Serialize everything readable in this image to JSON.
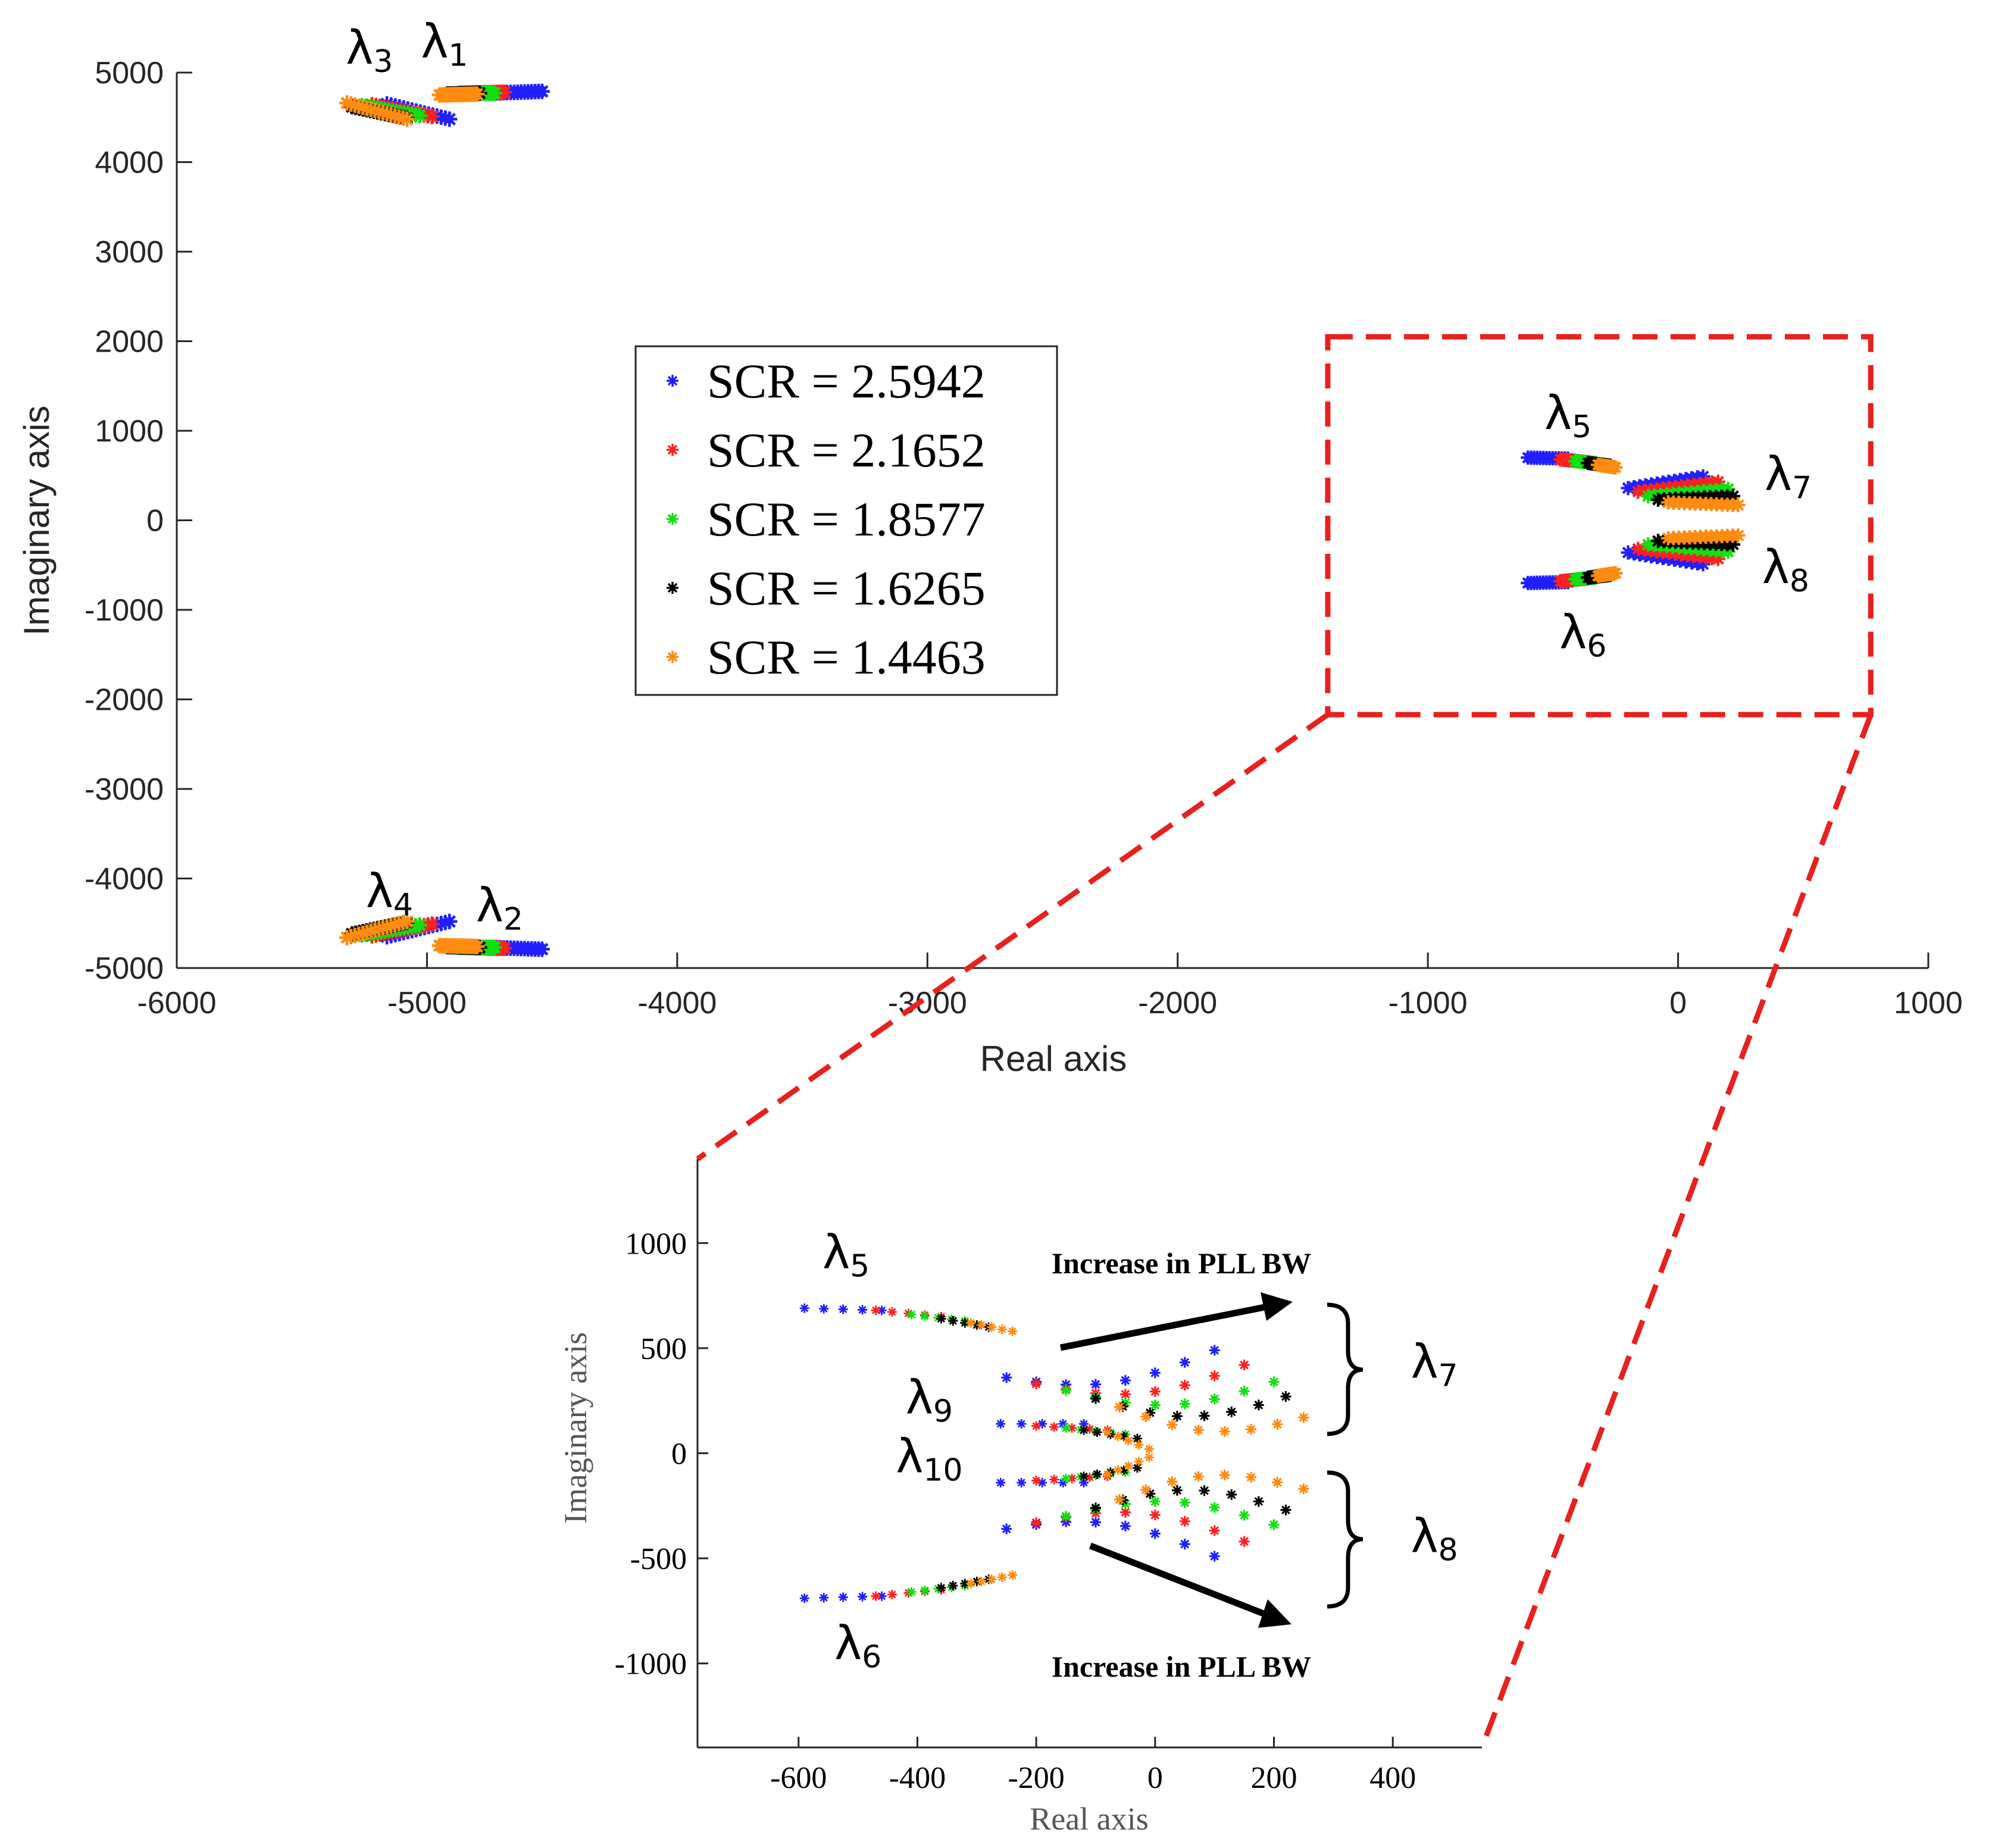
{
  "colors": {
    "blue": "#1f1fff",
    "red": "#ff2020",
    "green": "#10e010",
    "black": "#000000",
    "orange": "#ff8c10",
    "dash": "#e8201e",
    "axis": "#262626"
  },
  "chart_data": [
    {
      "type": "scatter",
      "name": "main",
      "xlabel": "Real axis",
      "ylabel": "Imaginary axis",
      "xlim": [
        -6000,
        1000
      ],
      "ylim": [
        -5000,
        5000
      ],
      "xticks": [
        -6000,
        -5000,
        -4000,
        -3000,
        -2000,
        -1000,
        0,
        1000
      ],
      "yticks": [
        -5000,
        -4000,
        -3000,
        -2000,
        -1000,
        0,
        1000,
        2000,
        3000,
        4000,
        5000
      ],
      "legend": {
        "position": "center-left",
        "entries": [
          "SCR = 2.5942",
          "SCR = 2.1652",
          "SCR = 1.8577",
          "SCR = 1.6265",
          "SCR = 1.4463"
        ]
      },
      "eigen_labels": [
        {
          "text": "λ",
          "sub": "1",
          "x": -4930,
          "y": 5170
        },
        {
          "text": "λ",
          "sub": "2",
          "x": -4710,
          "y": -4480
        },
        {
          "text": "λ",
          "sub": "3",
          "x": -5230,
          "y": 5100
        },
        {
          "text": "λ",
          "sub": "4",
          "x": -5150,
          "y": -4320
        },
        {
          "text": "λ",
          "sub": "5",
          "x": -440,
          "y": 1020
        },
        {
          "text": "λ",
          "sub": "6",
          "x": -380,
          "y": -1430
        },
        {
          "text": "λ",
          "sub": "7",
          "x": 440,
          "y": 340
        },
        {
          "text": "λ",
          "sub": "8",
          "x": 430,
          "y": -700
        }
      ],
      "zoom_box": {
        "x_range": [
          -1400,
          770
        ],
        "y_range": [
          -2170,
          2050
        ]
      },
      "series": [
        {
          "name": "SCR = 2.5942",
          "color_key": "blue",
          "branches": [
            {
              "label": "λ1",
              "from": [
                -4750,
                4770
              ],
              "to": [
                -4540,
                4790
              ]
            },
            {
              "label": "λ2",
              "from": [
                -4750,
                -4770
              ],
              "to": [
                -4540,
                -4790
              ]
            },
            {
              "label": "λ3",
              "from": [
                -5160,
                4650
              ],
              "to": [
                -4910,
                4480
              ]
            },
            {
              "label": "λ4",
              "from": [
                -5160,
                -4650
              ],
              "to": [
                -4910,
                -4480
              ]
            },
            {
              "label": "λ5",
              "from": [
                -600,
                700
              ],
              "to": [
                -440,
                690
              ]
            },
            {
              "label": "λ6",
              "from": [
                -600,
                -700
              ],
              "to": [
                -440,
                -690
              ]
            },
            {
              "label": "λ7",
              "from": [
                -200,
                360
              ],
              "to": [
                100,
                490
              ]
            },
            {
              "label": "λ8",
              "from": [
                -200,
                -360
              ],
              "to": [
                100,
                -490
              ]
            }
          ]
        },
        {
          "name": "SCR = 2.1652",
          "color_key": "red",
          "branches": [
            {
              "label": "λ1",
              "from": [
                -4850,
                4770
              ],
              "to": [
                -4690,
                4780
              ]
            },
            {
              "label": "λ2",
              "from": [
                -4850,
                -4770
              ],
              "to": [
                -4690,
                -4780
              ]
            },
            {
              "label": "λ3",
              "from": [
                -5220,
                4640
              ],
              "to": [
                -4980,
                4510
              ]
            },
            {
              "label": "λ4",
              "from": [
                -5220,
                -4640
              ],
              "to": [
                -4980,
                -4510
              ]
            },
            {
              "label": "λ5",
              "from": [
                -470,
                680
              ],
              "to": [
                -360,
                650
              ]
            },
            {
              "label": "λ6",
              "from": [
                -470,
                -680
              ],
              "to": [
                -360,
                -650
              ]
            },
            {
              "label": "λ7",
              "from": [
                -160,
                320
              ],
              "to": [
                160,
                430
              ]
            },
            {
              "label": "λ8",
              "from": [
                -160,
                -320
              ],
              "to": [
                160,
                -430
              ]
            }
          ]
        },
        {
          "name": "SCR = 1.8577",
          "color_key": "green",
          "branches": [
            {
              "label": "λ1",
              "from": [
                -4870,
                4770
              ],
              "to": [
                -4730,
                4770
              ]
            },
            {
              "label": "λ2",
              "from": [
                -4870,
                -4770
              ],
              "to": [
                -4730,
                -4770
              ]
            },
            {
              "label": "λ3",
              "from": [
                -5260,
                4630
              ],
              "to": [
                -5030,
                4520
              ]
            },
            {
              "label": "λ4",
              "from": [
                -5260,
                -4630
              ],
              "to": [
                -5030,
                -4520
              ]
            },
            {
              "label": "λ5",
              "from": [
                -410,
                660
              ],
              "to": [
                -330,
                640
              ]
            },
            {
              "label": "λ6",
              "from": [
                -410,
                -660
              ],
              "to": [
                -330,
                -640
              ]
            },
            {
              "label": "λ7",
              "from": [
                -120,
                270
              ],
              "to": [
                200,
                350
              ]
            },
            {
              "label": "λ8",
              "from": [
                -120,
                -270
              ],
              "to": [
                200,
                -350
              ]
            }
          ]
        },
        {
          "name": "SCR = 1.6265",
          "color_key": "black",
          "branches": [
            {
              "label": "λ1",
              "from": [
                -4920,
                4760
              ],
              "to": [
                -4790,
                4770
              ]
            },
            {
              "label": "λ2",
              "from": [
                -4920,
                -4760
              ],
              "to": [
                -4790,
                -4770
              ]
            },
            {
              "label": "λ3",
              "from": [
                -5300,
                4620
              ],
              "to": [
                -5080,
                4490
              ]
            },
            {
              "label": "λ4",
              "from": [
                -5300,
                -4620
              ],
              "to": [
                -5080,
                -4490
              ]
            },
            {
              "label": "λ5",
              "from": [
                -360,
                640
              ],
              "to": [
                -270,
                610
              ]
            },
            {
              "label": "λ6",
              "from": [
                -360,
                -640
              ],
              "to": [
                -270,
                -610
              ]
            },
            {
              "label": "λ7",
              "from": [
                -80,
                230
              ],
              "to": [
                220,
                270
              ]
            },
            {
              "label": "λ8",
              "from": [
                -80,
                -230
              ],
              "to": [
                220,
                -270
              ]
            }
          ]
        },
        {
          "name": "SCR = 1.4463",
          "color_key": "orange",
          "branches": [
            {
              "label": "λ1",
              "from": [
                -4950,
                4750
              ],
              "to": [
                -4800,
                4760
              ]
            },
            {
              "label": "λ2",
              "from": [
                -4950,
                -4750
              ],
              "to": [
                -4800,
                -4760
              ]
            },
            {
              "label": "λ3",
              "from": [
                -5320,
                4660
              ],
              "to": [
                -5080,
                4480
              ]
            },
            {
              "label": "λ4",
              "from": [
                -5320,
                -4660
              ],
              "to": [
                -5080,
                -4480
              ]
            },
            {
              "label": "λ5",
              "from": [
                -320,
                620
              ],
              "to": [
                -250,
                590
              ]
            },
            {
              "label": "λ6",
              "from": [
                -320,
                -620
              ],
              "to": [
                -250,
                -590
              ]
            },
            {
              "label": "λ7",
              "from": [
                -40,
                200
              ],
              "to": [
                240,
                170
              ]
            },
            {
              "label": "λ8",
              "from": [
                -40,
                -200
              ],
              "to": [
                240,
                -170
              ]
            }
          ]
        }
      ]
    },
    {
      "type": "scatter",
      "name": "inset",
      "xlabel": "Real axis",
      "ylabel": "Imaginary axis",
      "xlim": [
        -770,
        550
      ],
      "ylim": [
        -1400,
        1400
      ],
      "xticks": [
        -600,
        -400,
        -200,
        0,
        200,
        400
      ],
      "yticks": [
        -1000,
        -500,
        0,
        500,
        1000
      ],
      "annotations": [
        {
          "text": "Increase in PLL BW",
          "where": "top"
        },
        {
          "text": "Increase in PLL BW",
          "where": "bottom"
        }
      ],
      "eigen_labels": [
        {
          "text": "λ",
          "sub": "5",
          "x": -520,
          "y": 880
        },
        {
          "text": "λ",
          "sub": "6",
          "x": -500,
          "y": -980
        },
        {
          "text": "λ",
          "sub": "7",
          "x": 470,
          "y": 360
        },
        {
          "text": "λ",
          "sub": "8",
          "x": 470,
          "y": -470
        },
        {
          "text": "λ",
          "sub": "9",
          "x": -380,
          "y": 190
        },
        {
          "text": "λ",
          "sub": "10",
          "x": -380,
          "y": -90
        }
      ],
      "series": [
        {
          "name": "SCR = 2.5942",
          "color_key": "blue",
          "lambda5": {
            "from": [
              -590,
              690
            ],
            "to": [
              -460,
              680
            ]
          },
          "lambda9": {
            "from": [
              -260,
              140
            ],
            "to": [
              -120,
              140
            ]
          },
          "lambda7": {
            "from": [
              -250,
              360
            ],
            "to": [
              100,
              490
            ]
          }
        },
        {
          "name": "SCR = 2.1652",
          "color_key": "red",
          "lambda5": {
            "from": [
              -470,
              680
            ],
            "to": [
              -360,
              650
            ]
          },
          "lambda9": {
            "from": [
              -200,
              130
            ],
            "to": [
              -80,
              110
            ]
          },
          "lambda7": {
            "from": [
              -200,
              330
            ],
            "to": [
              150,
              420
            ]
          }
        },
        {
          "name": "SCR = 1.8577",
          "color_key": "green",
          "lambda5": {
            "from": [
              -410,
              660
            ],
            "to": [
              -320,
              630
            ]
          },
          "lambda9": {
            "from": [
              -150,
              120
            ],
            "to": [
              -50,
              90
            ]
          },
          "lambda7": {
            "from": [
              -150,
              300
            ],
            "to": [
              200,
              340
            ]
          }
        },
        {
          "name": "SCR = 1.6265",
          "color_key": "black",
          "lambda5": {
            "from": [
              -360,
              640
            ],
            "to": [
              -280,
              600
            ]
          },
          "lambda9": {
            "from": [
              -120,
              110
            ],
            "to": [
              -30,
              70
            ]
          },
          "lambda7": {
            "from": [
              -100,
              260
            ],
            "to": [
              220,
              270
            ]
          }
        },
        {
          "name": "SCR = 1.4463",
          "color_key": "orange",
          "lambda5": {
            "from": [
              -310,
              620
            ],
            "to": [
              -240,
              580
            ]
          },
          "lambda9": {
            "from": [
              -80,
              100
            ],
            "to": [
              -10,
              20
            ]
          },
          "lambda7": {
            "from": [
              -60,
              220
            ],
            "to": [
              250,
              170
            ]
          }
        }
      ]
    }
  ]
}
